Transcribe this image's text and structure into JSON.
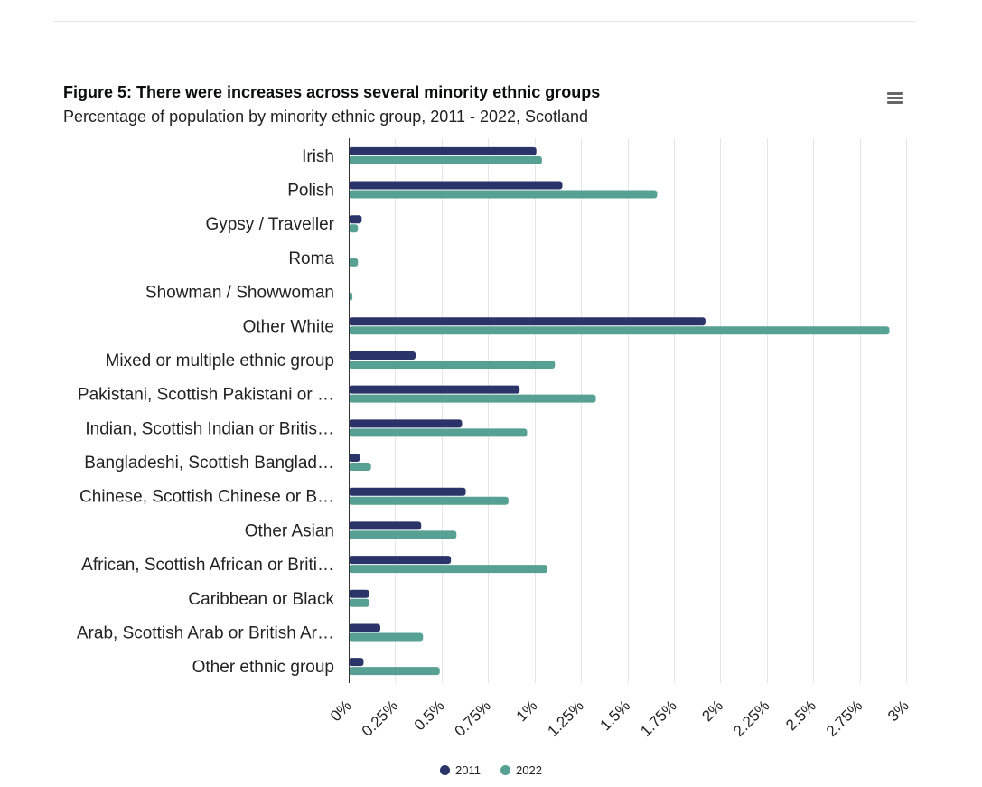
{
  "chart_data": {
    "type": "bar",
    "orientation": "horizontal",
    "title": "Figure 5: There were increases across several minority ethnic groups",
    "subtitle": "Percentage of population by minority ethnic group, 2011 - 2022, Scotland",
    "categories": [
      "Irish",
      "Polish",
      "Gypsy / Traveller",
      "Roma",
      "Showman / Showwoman",
      "Other White",
      "Mixed or multiple ethnic group",
      "Pakistani, Scottish Pakistani or …",
      "Indian, Scottish Indian or Britis…",
      "Bangladeshi, Scottish Banglad…",
      "Chinese, Scottish Chinese or B…",
      "Other Asian",
      "African, Scottish African or Briti…",
      "Caribbean or Black",
      "Arab, Scottish Arab or British Ar…",
      "Other ethnic group"
    ],
    "series": [
      {
        "name": "2011",
        "color": "#2a3468",
        "values": [
          1.01,
          1.15,
          0.07,
          null,
          null,
          1.92,
          0.36,
          0.92,
          0.61,
          0.06,
          0.63,
          0.39,
          0.55,
          0.11,
          0.17,
          0.08
        ]
      },
      {
        "name": "2022",
        "color": "#57a194",
        "values": [
          1.04,
          1.66,
          0.05,
          0.05,
          0.02,
          2.91,
          1.11,
          1.33,
          0.96,
          0.12,
          0.86,
          0.58,
          1.07,
          0.11,
          0.4,
          0.49
        ]
      }
    ],
    "xlim": [
      0,
      3
    ],
    "ticks": [
      "0%",
      "0.25%",
      "0.5%",
      "0.75%",
      "1%",
      "1.25%",
      "1.5%",
      "1.75%",
      "2%",
      "2.25%",
      "2.5%",
      "2.75%",
      "3%"
    ],
    "tick_values": [
      0,
      0.25,
      0.5,
      0.75,
      1,
      1.25,
      1.5,
      1.75,
      2,
      2.25,
      2.5,
      2.75,
      3
    ],
    "grid": true,
    "legend_position": "bottom-center"
  },
  "menu": {
    "icon": "hamburger-menu-icon"
  }
}
